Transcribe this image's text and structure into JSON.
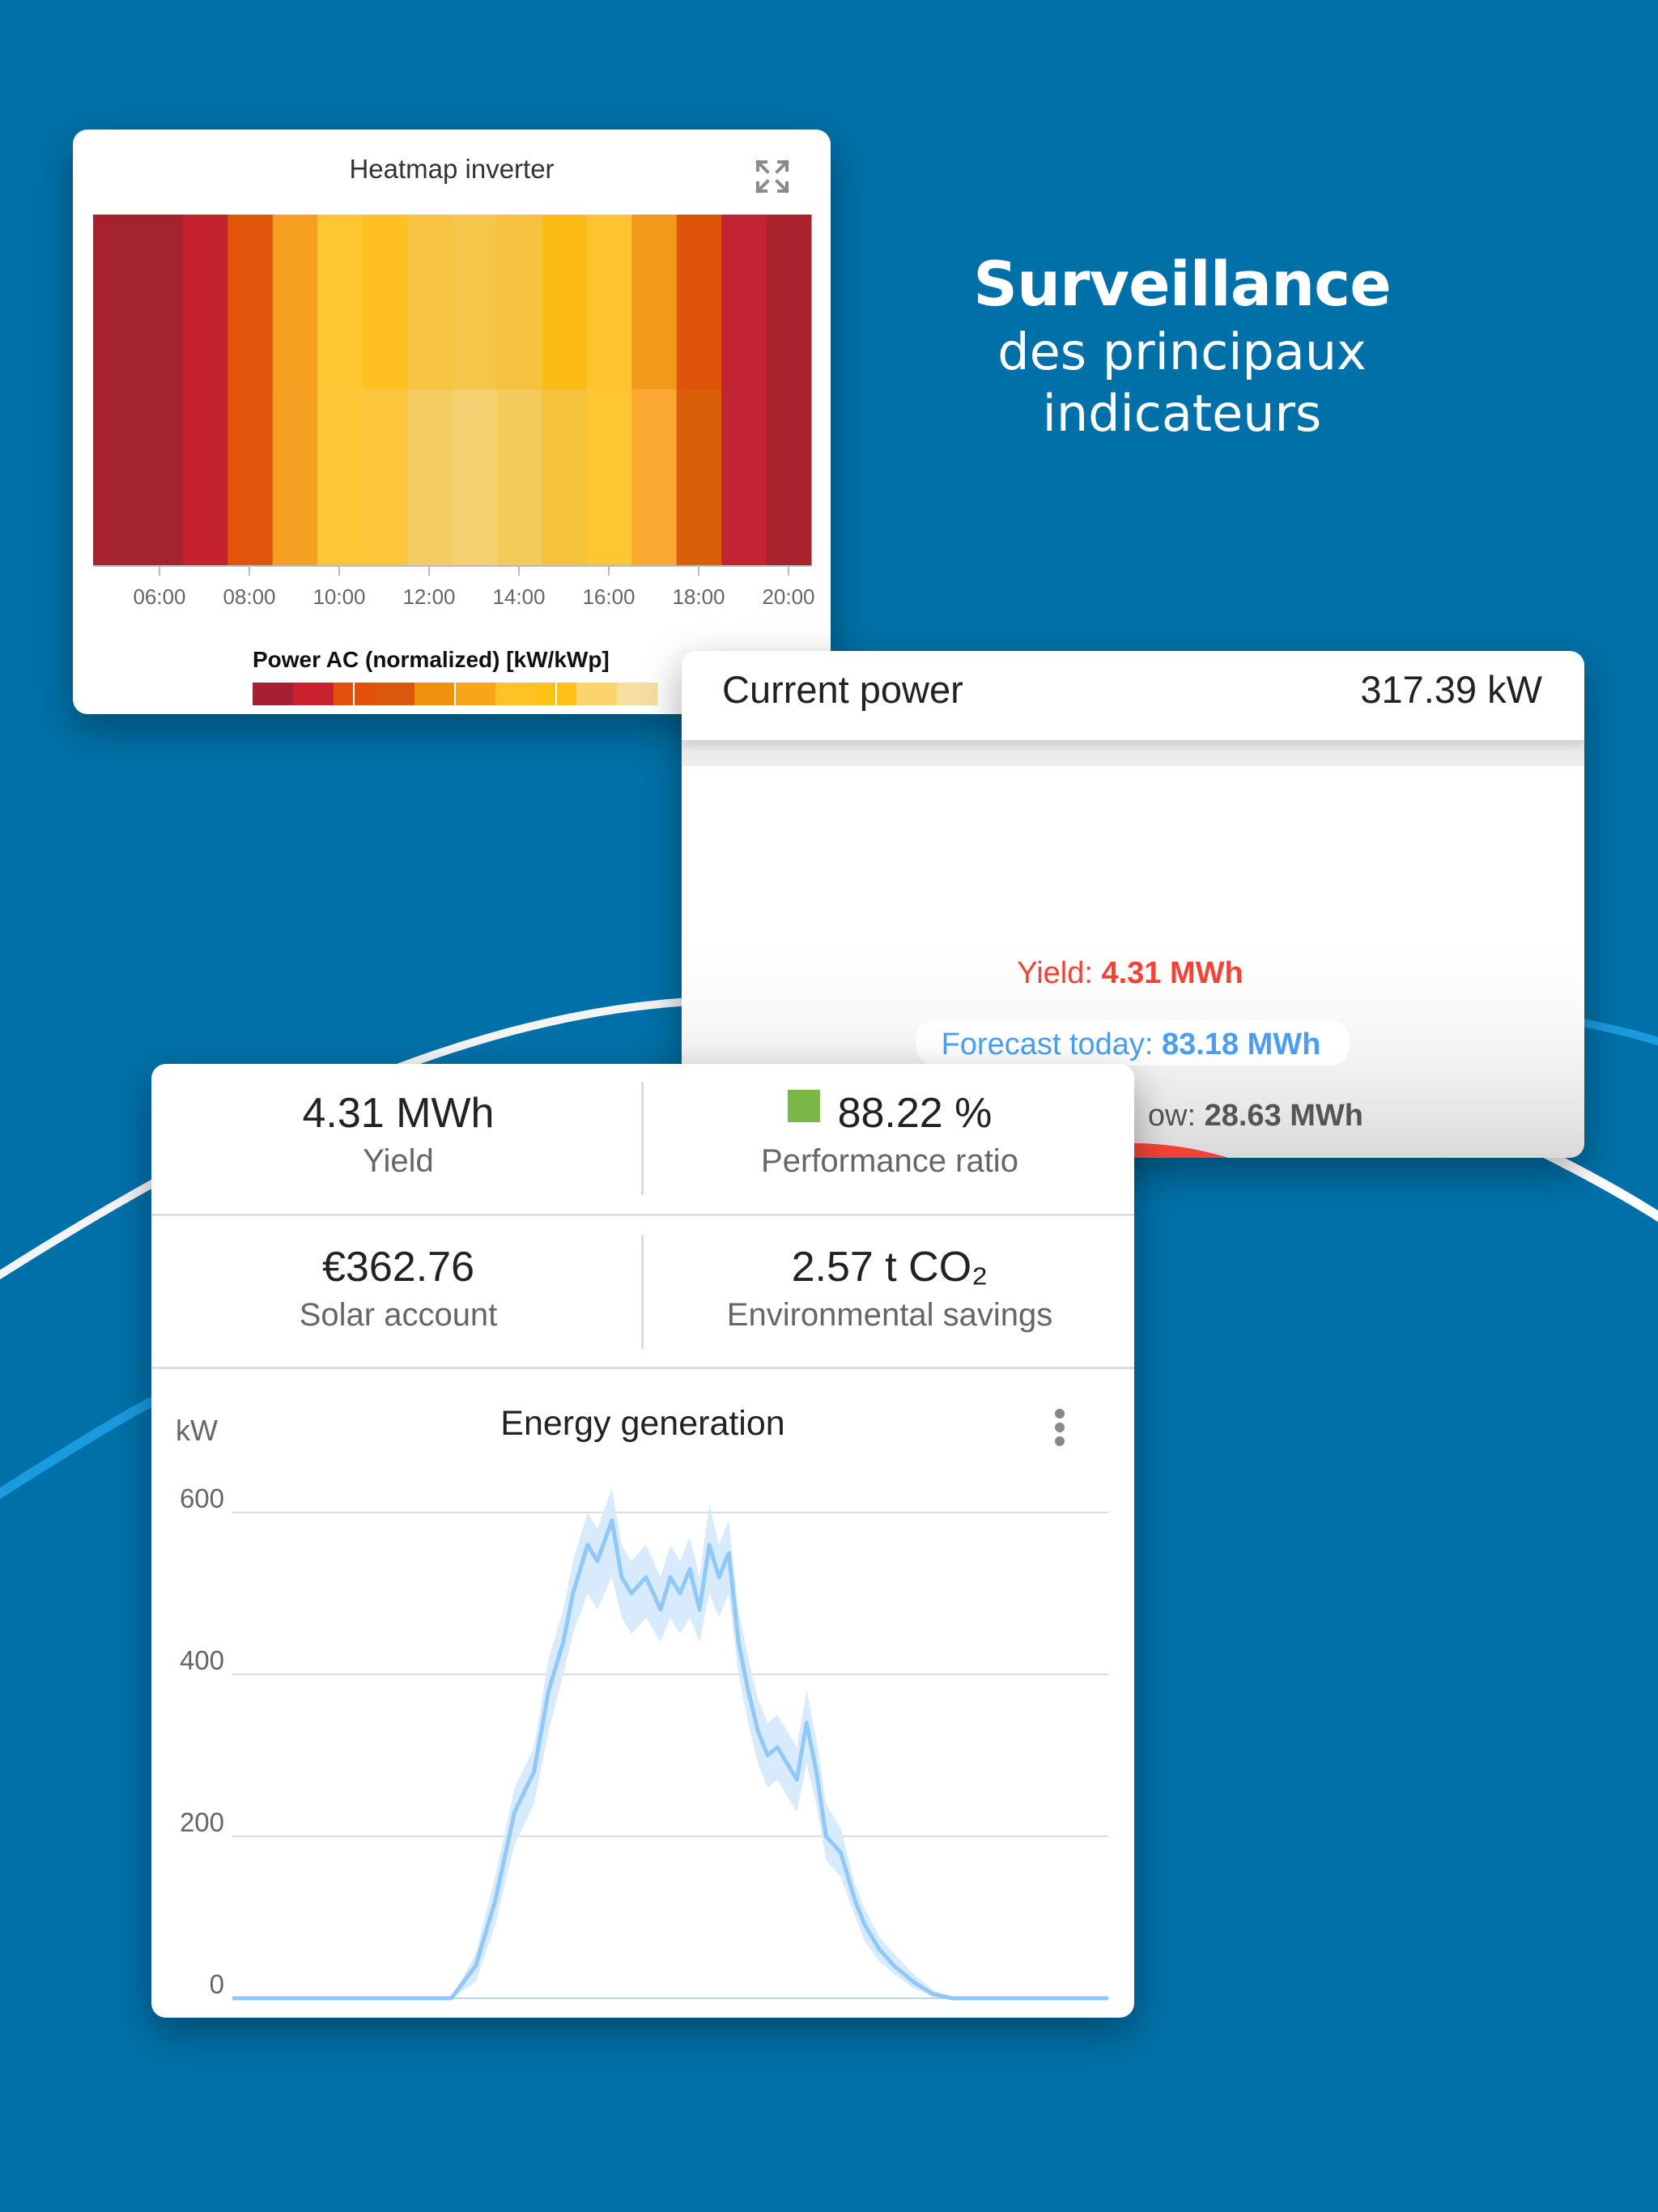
{
  "headline": {
    "title": "Surveillance",
    "subtitle_line1": "des principaux",
    "subtitle_line2": "indicateurs"
  },
  "heatmap_card": {
    "title": "Heatmap inverter",
    "expand_icon": "expand-icon",
    "x_ticks": [
      "06:00",
      "08:00",
      "10:00",
      "12:00",
      "14:00",
      "16:00",
      "18:00",
      "20:00"
    ],
    "legend_title": "Power AC (normalized) [kW/kWp]",
    "rows": [
      [
        "#a5232f",
        "#a5232f",
        "#c4222f",
        "#e2540a",
        "#f5a020",
        "#fec631",
        "#ffc021",
        "#f8c543",
        "#f5c649",
        "#f7c23f",
        "#fdbb16",
        "#fec432",
        "#f0991a",
        "#e0530b",
        "#c22434",
        "#a8232e"
      ],
      [
        "#a5232f",
        "#a5232f",
        "#c4222f",
        "#e2540a",
        "#f5a022",
        "#fdc634",
        "#fdc63c",
        "#f3cc61",
        "#f5d070",
        "#f2cb5b",
        "#f5c23b",
        "#fec632",
        "#fba832",
        "#db5e08",
        "#c22434",
        "#a8232e"
      ]
    ],
    "legend_colors": [
      "#a52035",
      "#c8222e",
      "#e3500c",
      "#d9580a",
      "#f0900e",
      "#f9a51c",
      "#ffc125",
      "#ffc118",
      "#fbd56b",
      "#f8dfa0"
    ]
  },
  "power_card": {
    "label": "Current power",
    "value": "317.39 kW",
    "yield_label": "Yield: ",
    "yield_value": "4.31 MWh",
    "forecast_label": "Forecast today: ",
    "forecast_value": "83.18 MWh",
    "tomorrow_label": "ow: ",
    "tomorrow_value": "28.63 MWh",
    "yield_color": "#f44336",
    "forecast_color": "#4a9ff5"
  },
  "kpis": [
    {
      "value": "4.31 MWh",
      "label": "Yield"
    },
    {
      "value": "88.22 %",
      "label": "Performance ratio",
      "status_color": "#7ab648"
    },
    {
      "value": "€362.76",
      "label": "Solar account"
    },
    {
      "value": "2.57 t CO₂",
      "label": "Environmental savings"
    }
  ],
  "chart_data": {
    "type": "line",
    "title": "Energy generation",
    "ylabel": "kW",
    "ylim": [
      0,
      600
    ],
    "yticks": [
      "600",
      "400",
      "200",
      "0"
    ],
    "x_hours": [
      4.0,
      6.5,
      8.5,
      9.0,
      9.4,
      9.8,
      10.2,
      10.5,
      10.8,
      11.0,
      11.3,
      11.5,
      11.8,
      12.0,
      12.2,
      12.5,
      12.8,
      13.0,
      13.2,
      13.4,
      13.6,
      13.8,
      14.0,
      14.2,
      14.4,
      14.6,
      14.8,
      15.0,
      15.2,
      15.4,
      15.6,
      15.8,
      16.0,
      16.2,
      16.5,
      16.8,
      17.0,
      17.3,
      17.6,
      18.0,
      18.4,
      18.8,
      19.2,
      19.6,
      20.0,
      22.0
    ],
    "values": [
      0,
      0,
      0,
      40,
      120,
      230,
      280,
      380,
      440,
      500,
      560,
      540,
      590,
      520,
      500,
      520,
      480,
      520,
      500,
      530,
      480,
      560,
      520,
      550,
      440,
      380,
      330,
      300,
      310,
      290,
      270,
      340,
      280,
      200,
      180,
      120,
      90,
      60,
      40,
      20,
      5,
      0,
      0,
      0,
      0,
      0
    ],
    "band_low": [
      0,
      0,
      0,
      20,
      90,
      190,
      240,
      330,
      400,
      450,
      500,
      480,
      520,
      470,
      450,
      470,
      440,
      470,
      450,
      470,
      440,
      500,
      470,
      500,
      400,
      340,
      290,
      260,
      270,
      250,
      230,
      290,
      240,
      170,
      150,
      100,
      70,
      45,
      30,
      12,
      2,
      0,
      0,
      0,
      0,
      0
    ],
    "band_high": [
      0,
      0,
      0,
      55,
      150,
      260,
      310,
      420,
      480,
      540,
      600,
      580,
      630,
      560,
      540,
      560,
      520,
      560,
      540,
      570,
      520,
      610,
      560,
      590,
      480,
      420,
      370,
      340,
      350,
      330,
      310,
      380,
      320,
      240,
      210,
      140,
      110,
      75,
      55,
      30,
      10,
      0,
      0,
      0,
      0,
      0
    ],
    "line_color": "#90c8f8",
    "band_color": "#d8ebfc"
  }
}
